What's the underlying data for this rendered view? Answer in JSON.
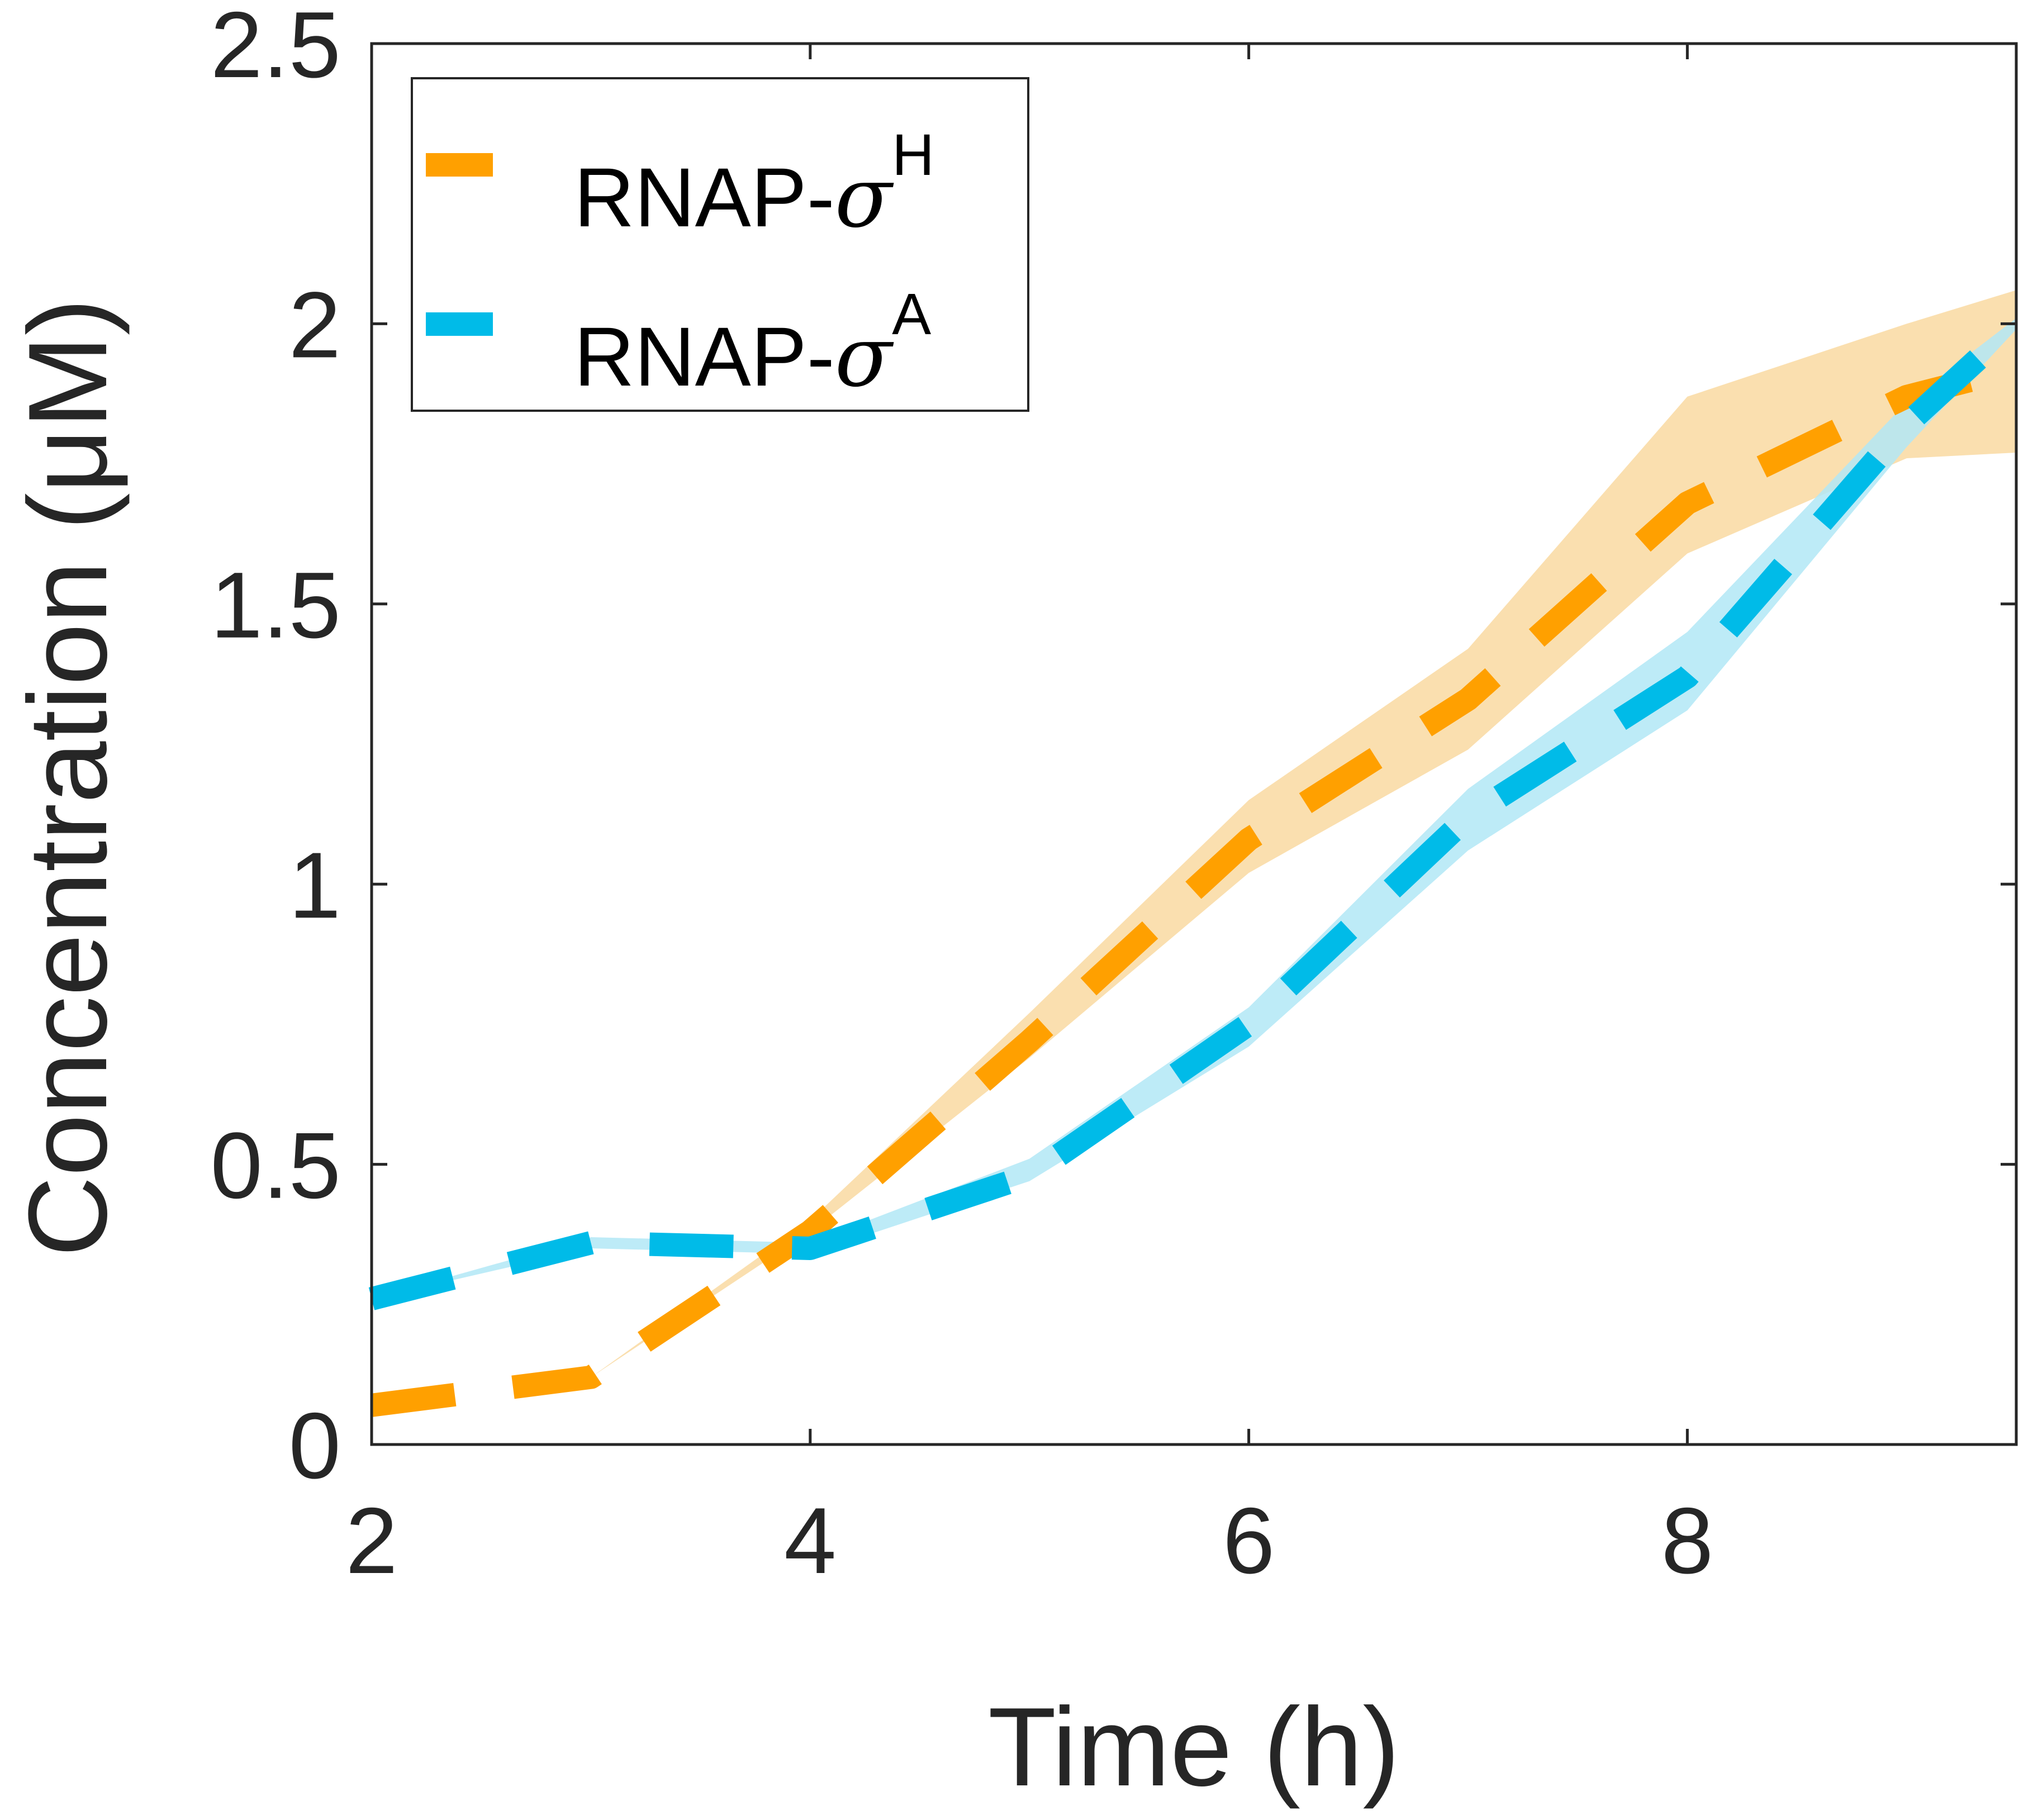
{
  "chart_data": {
    "type": "line",
    "xlabel": "Time (h)",
    "ylabel": "Concentration (μM)",
    "xlim": [
      2,
      9.5
    ],
    "ylim": [
      0,
      2.5
    ],
    "xticks": [
      2,
      4,
      6,
      8
    ],
    "yticks": [
      0,
      0.5,
      1,
      1.5,
      2,
      2.5
    ],
    "xtick_labels": [
      "2",
      "4",
      "6",
      "8"
    ],
    "ytick_labels": [
      "0",
      "0.5",
      "1",
      "1.5",
      "2",
      "2.5"
    ],
    "legend_position": "top-left",
    "grid": false,
    "series": [
      {
        "name": "RNAP-σH",
        "label_base": "RNAP-",
        "label_sigma": "σ",
        "label_sup": "H",
        "color": "#FFA000",
        "band_color": "#F9D9A1",
        "style": "dashed",
        "x": [
          2,
          3,
          4,
          5,
          6,
          7,
          8,
          9,
          9.5
        ],
        "y": [
          0.07,
          0.12,
          0.38,
          0.72,
          1.08,
          1.33,
          1.68,
          1.87,
          1.92
        ],
        "lower": [
          0.07,
          0.12,
          0.38,
          0.69,
          1.02,
          1.24,
          1.59,
          1.76,
          1.77
        ],
        "upper": [
          0.07,
          0.12,
          0.4,
          0.77,
          1.15,
          1.42,
          1.87,
          2.0,
          2.06
        ]
      },
      {
        "name": "RNAP-σA",
        "label_base": "RNAP-",
        "label_sigma": "σ",
        "label_sup": "A",
        "color": "#00BBE8",
        "band_color": "#B2E8F6",
        "style": "dashed",
        "x": [
          2,
          3,
          4,
          5,
          6,
          7,
          8,
          9,
          9.5
        ],
        "y": [
          0.26,
          0.36,
          0.35,
          0.48,
          0.75,
          1.12,
          1.37,
          1.82,
          2.0
        ],
        "lower": [
          0.26,
          0.35,
          0.34,
          0.47,
          0.71,
          1.06,
          1.31,
          1.78,
          1.99
        ],
        "upper": [
          0.26,
          0.37,
          0.36,
          0.51,
          0.78,
          1.17,
          1.45,
          1.86,
          2.01
        ]
      }
    ]
  }
}
